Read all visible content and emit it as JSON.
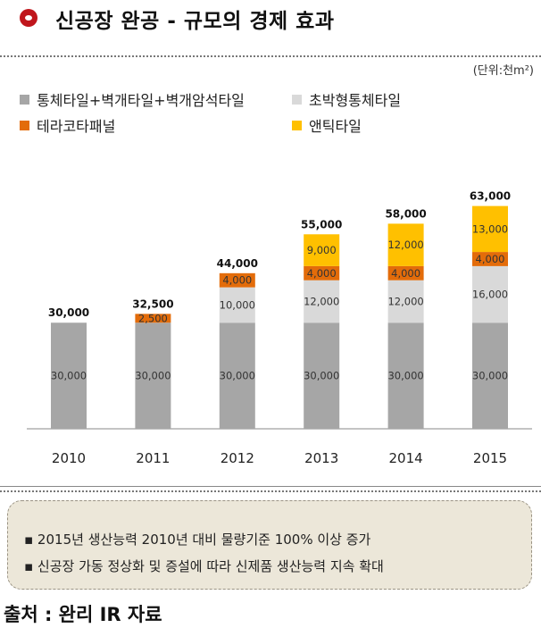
{
  "header": {
    "title": "신공장 완공 - 규모의 경제 효과",
    "unit": "(단위:천m²)"
  },
  "colors": {
    "accent": "#c0161c",
    "series": [
      "#a6a6a6",
      "#d9d9d9",
      "#e36c0a",
      "#ffc000"
    ],
    "axis": "#888888"
  },
  "chart_data": {
    "type": "bar",
    "stacked": true,
    "categories": [
      "2010",
      "2011",
      "2012",
      "2013",
      "2014",
      "2015"
    ],
    "series": [
      {
        "name": "통체타일+벽개타일+벽개암석타일",
        "values": [
          30000,
          30000,
          30000,
          30000,
          30000,
          30000
        ],
        "labels": [
          "30,000",
          "30,000",
          "30,000",
          "30,000",
          "30,000",
          "30,000"
        ]
      },
      {
        "name": "초박형통체타일",
        "values": [
          0,
          0,
          10000,
          12000,
          12000,
          16000
        ],
        "labels": [
          "",
          "",
          "10,000",
          "12,000",
          "12,000",
          "16,000"
        ]
      },
      {
        "name": "테라코타패널",
        "values": [
          0,
          2500,
          4000,
          4000,
          4000,
          4000
        ],
        "labels": [
          "",
          "2,500",
          "4,000",
          "4,000",
          "4,000",
          "4,000"
        ]
      },
      {
        "name": "앤틱타일",
        "values": [
          0,
          0,
          0,
          9000,
          12000,
          13000
        ],
        "labels": [
          "",
          "",
          "",
          "9,000",
          "12,000",
          "13,000"
        ]
      }
    ],
    "totals": [
      "30,000",
      "32,500",
      "44,000",
      "55,000",
      "58,000",
      "63,000"
    ],
    "ylim": [
      0,
      63000
    ],
    "grid": false,
    "legend_position": "top-left"
  },
  "notes": [
    "▪ 2015년 생산능력 2010년 대비 물량기준 100% 이상 증가",
    "▪ 신공장 가동 정상화 및 증설에 따라 신제품 생산능력 지속 확대"
  ],
  "source": "출처 : 완리 IR 자료"
}
